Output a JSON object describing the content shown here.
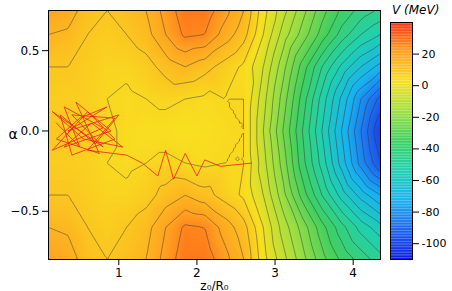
{
  "chart_data": {
    "type": "heatmap",
    "x_label": "z₀/R₀",
    "y_label": "α",
    "xlim": [
      0.1,
      4.35
    ],
    "xticks": [
      1,
      2,
      3,
      4
    ],
    "ylim": [
      -0.8,
      0.75
    ],
    "yticks": [
      {
        "value": -0.5,
        "label": "−0.5"
      },
      {
        "value": 0,
        "label": "0.0"
      },
      0.5
    ],
    "x": [
      0.1,
      0.35,
      0.6,
      0.85,
      1.1,
      1.35,
      1.6,
      1.85,
      2.1,
      2.35,
      2.6,
      2.85,
      3.1,
      3.35,
      3.6,
      3.85,
      4.1,
      4.35
    ],
    "y": [
      -0.8,
      -0.6,
      -0.4,
      -0.2,
      0,
      0.2,
      0.4,
      0.6,
      0.75
    ],
    "cells": [
      [
        20,
        18,
        12,
        10,
        12,
        15,
        22,
        28,
        28,
        22,
        15,
        2,
        -8,
        -18,
        -28,
        -36,
        -42,
        -48
      ],
      [
        15,
        14,
        10,
        8,
        10,
        13,
        20,
        26,
        25,
        18,
        12,
        0,
        -12,
        -22,
        -33,
        -43,
        -52,
        -58
      ],
      [
        10,
        10,
        8,
        6,
        6,
        8,
        12,
        15,
        12,
        8,
        4,
        -5,
        -18,
        -32,
        -45,
        -57,
        -67,
        -75
      ],
      [
        8,
        8,
        7,
        5,
        4,
        5,
        6,
        5,
        4,
        5,
        5,
        -8,
        -22,
        -38,
        -52,
        -67,
        -82,
        -95
      ],
      [
        10,
        10,
        8,
        6,
        4,
        3,
        3,
        2,
        3,
        4,
        5,
        -10,
        -25,
        -40,
        -55,
        -70,
        -85,
        -100
      ],
      [
        8,
        8,
        7,
        5,
        4,
        5,
        6,
        5,
        4,
        5,
        5,
        -8,
        -22,
        -37,
        -52,
        -66,
        -80,
        -92
      ],
      [
        10,
        10,
        8,
        6,
        6,
        8,
        12,
        15,
        12,
        8,
        4,
        -5,
        -18,
        -32,
        -45,
        -56,
        -65,
        -72
      ],
      [
        15,
        14,
        10,
        8,
        10,
        13,
        20,
        26,
        25,
        18,
        12,
        0,
        -12,
        -22,
        -32,
        -42,
        -50,
        -55
      ],
      [
        20,
        18,
        12,
        10,
        12,
        15,
        22,
        28,
        28,
        22,
        15,
        2,
        -8,
        -18,
        -28,
        -36,
        -42,
        -46
      ]
    ],
    "color_label": "V (MeV)",
    "colorlim": [
      -110,
      40
    ],
    "colorticks": [
      -100,
      -80,
      -60,
      -40,
      -20,
      0,
      20
    ],
    "trajectory": {
      "color": "#e8201a",
      "x": [
        0.2,
        0.5,
        0.3,
        0.8,
        0.15,
        0.6,
        0.95,
        0.4,
        0.25,
        0.7,
        1.0,
        0.35,
        0.85,
        0.5,
        0.2,
        0.75,
        0.45,
        0.9,
        0.3,
        0.65,
        1.05,
        0.55,
        0.15,
        0.8,
        0.4,
        0.95,
        0.6,
        1.1,
        1.3,
        1.5,
        1.6,
        1.7,
        1.85,
        2.0,
        2.1,
        2.3,
        2.7
      ],
      "y": [
        0.05,
        -0.1,
        0.15,
        0.02,
        -0.12,
        0.12,
        -0.05,
        -0.15,
        0.1,
        -0.08,
        0.1,
        0.0,
        0.15,
        0.08,
        -0.05,
        -0.14,
        0.18,
        0.0,
        -0.1,
        0.05,
        -0.1,
        -0.05,
        0.12,
        -0.1,
        0.1,
        0.08,
        -0.12,
        -0.15,
        -0.2,
        -0.28,
        -0.12,
        -0.3,
        -0.14,
        -0.28,
        -0.18,
        -0.22,
        -0.2
      ]
    }
  }
}
